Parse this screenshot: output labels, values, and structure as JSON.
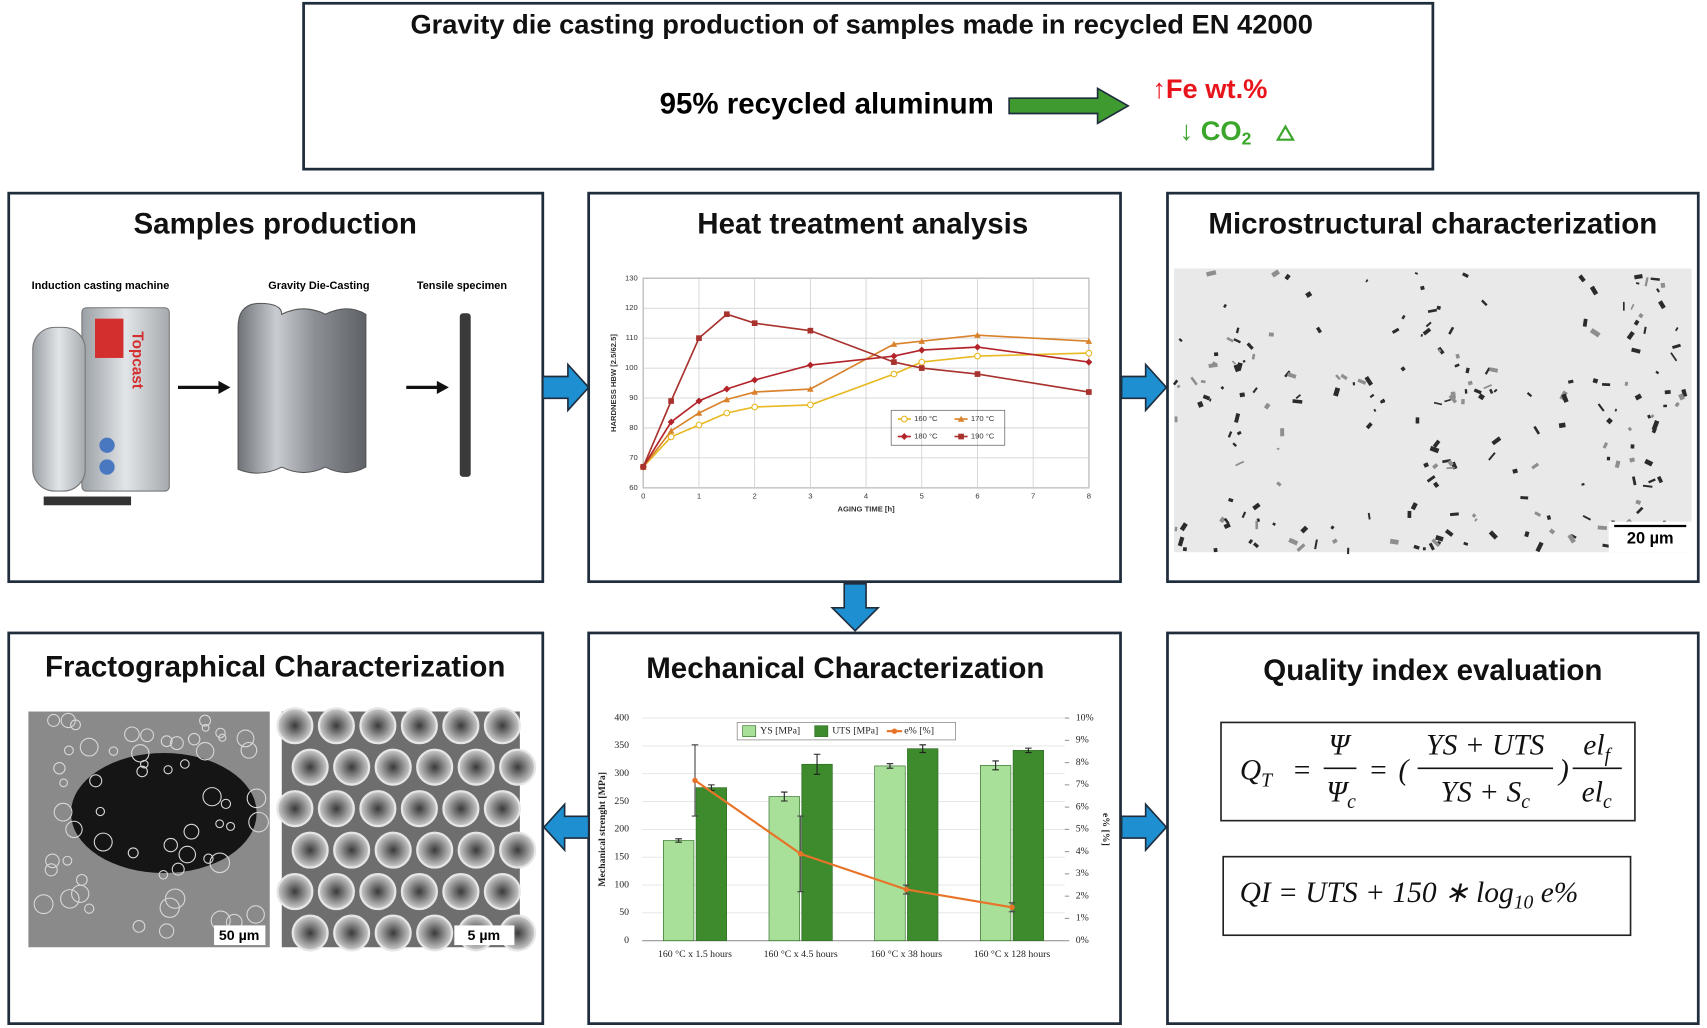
{
  "header": {
    "title": "Gravity die casting production of samples made in recycled EN 42000",
    "recycled": "95% recycled aluminum",
    "fe": "↑Fe wt.%",
    "co2": "↓ CO",
    "co2_sub": "2"
  },
  "panels": [
    {
      "title": "Samples production"
    },
    {
      "title": "Heat treatment analysis"
    },
    {
      "title": "Microstructural characterization"
    },
    {
      "title": "Fractographical Characterization"
    },
    {
      "title": "Mechanical Characterization"
    },
    {
      "title": "Quality index evaluation"
    }
  ],
  "samples": {
    "labels": [
      "Induction casting machine",
      "Gravity Die-Casting",
      "Tensile specimen"
    ],
    "brand": "Topcast"
  },
  "micro": {
    "scale": "20 µm"
  },
  "fracto": {
    "scales": [
      "50 µm",
      "5 µm"
    ]
  },
  "heat_chart": {
    "type": "line",
    "xlabel": "AGING TIME [h]",
    "ylabel": "HARDNESS HBW [2.5/62.5]",
    "x": [
      0,
      0.5,
      1,
      1.5,
      2,
      3,
      4.5,
      5,
      6,
      8
    ],
    "xlim": [
      0,
      8
    ],
    "xticks": [
      0,
      1,
      2,
      3,
      4,
      5,
      6,
      7,
      8
    ],
    "ylim": [
      60,
      130
    ],
    "yticks": [
      60,
      70,
      80,
      90,
      100,
      110,
      120,
      130
    ],
    "grid": true,
    "series": [
      {
        "name": "160 °C",
        "color": "#e8b923",
        "values": [
          67,
          77,
          81,
          85,
          87,
          87.7,
          98,
          102,
          104,
          105
        ]
      },
      {
        "name": "170 °C",
        "color": "#d9822b",
        "values": [
          67,
          79,
          85,
          89.5,
          92,
          93,
          108,
          109,
          111,
          109
        ]
      },
      {
        "name": "180 °C",
        "color": "#b3242a",
        "values": [
          67,
          82,
          89,
          93,
          96,
          101,
          104,
          106,
          107,
          102
        ]
      },
      {
        "name": "190 °C",
        "color": "#a8322d",
        "values": [
          67,
          89,
          110,
          118,
          115,
          112.5,
          102,
          100,
          98,
          92
        ]
      }
    ]
  },
  "mech_chart": {
    "type": "bar",
    "ylabel": "Mechanical strenght [MPa]",
    "y2label": "e% [%]",
    "categories": [
      "160 °C x 1.5 hours",
      "160 °C x 4.5 hours",
      "160 °C x 38 hours",
      "160 °C x 128 hours"
    ],
    "ylim": [
      0,
      400
    ],
    "yticks": [
      0,
      50,
      100,
      150,
      200,
      250,
      300,
      350,
      400
    ],
    "y2lim": [
      0,
      10
    ],
    "y2ticks": [
      {
        "value": 0,
        "label": "0%"
      },
      {
        "value": 1,
        "label": "1%"
      },
      {
        "value": 2,
        "label": "2%"
      },
      {
        "value": 3,
        "label": "3%"
      },
      {
        "value": 4,
        "label": "4%"
      },
      {
        "value": 5,
        "label": "5%"
      },
      {
        "value": 6,
        "label": "6%"
      },
      {
        "value": 7,
        "label": "7%"
      },
      {
        "value": 8,
        "label": "8%"
      },
      {
        "value": 9,
        "label": "9%"
      },
      {
        "value": 10,
        "label": "10%"
      }
    ],
    "series": [
      {
        "name": "YS [MPa]",
        "color": "#a8e09a",
        "values": [
          180,
          259,
          314,
          315
        ],
        "errors": [
          3,
          8,
          4,
          8
        ]
      },
      {
        "name": "UTS [MPa]",
        "color": "#3d8b2d",
        "values": [
          275,
          317,
          345,
          342
        ],
        "errors": [
          5,
          18,
          7,
          4
        ]
      },
      {
        "name": "e% [%]",
        "color": "#e8742a",
        "axis": "y2",
        "type": "line",
        "values": [
          7.2,
          3.9,
          2.3,
          1.5
        ],
        "errors": [
          1.6,
          1.7,
          0.2,
          0.2
        ]
      }
    ]
  },
  "formulas": {
    "qt": {
      "q": "Q",
      "q_sub": "T",
      "eq": "=",
      "psi": "Ψ",
      "psi_c": "Ψ",
      "psi_c_sub": "c",
      "eq2": "=",
      "lparen": "(",
      "num": "YS + UTS",
      "den": "YS + S",
      "den_sub": "c",
      "rparen": ")",
      "el_f": "el",
      "el_f_sub": "f",
      "el_c": "el",
      "el_c_sub": "c"
    },
    "qi": {
      "main": "QI = UTS + 150 ∗ log",
      "sub": "10",
      "tail": " e%"
    }
  }
}
